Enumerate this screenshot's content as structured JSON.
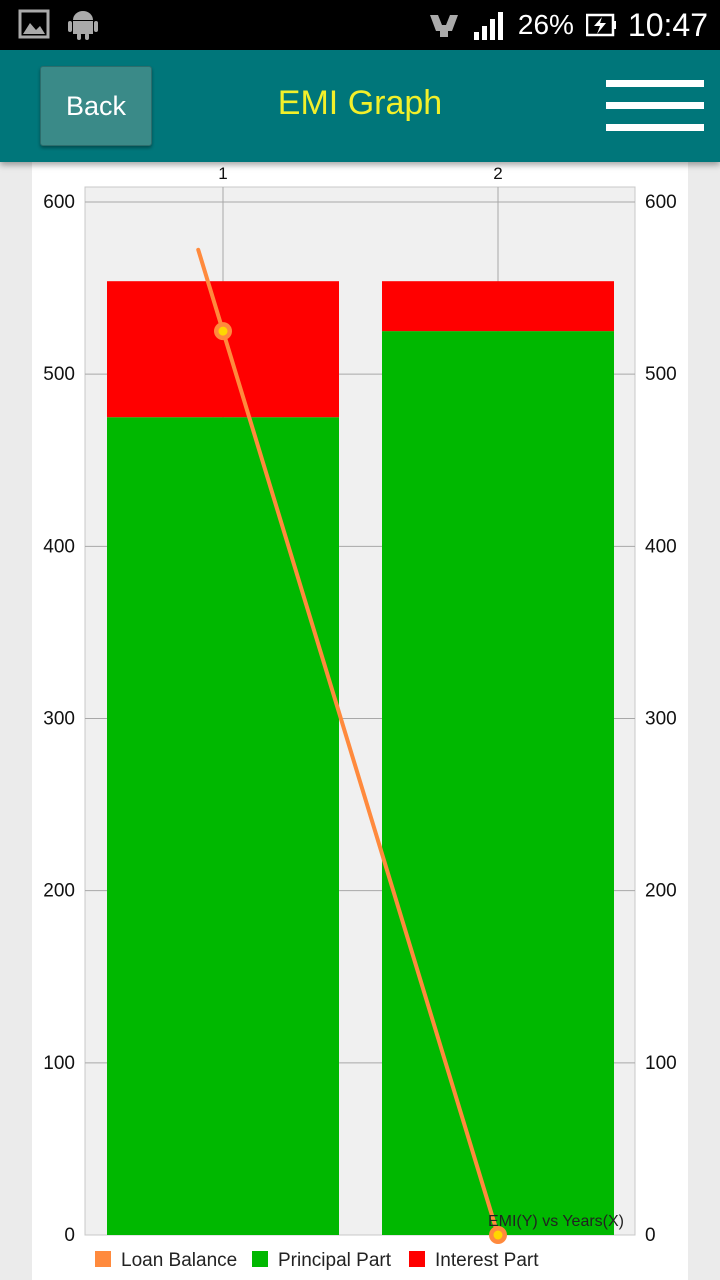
{
  "status_bar": {
    "battery_percent": "26%",
    "time": "10:47",
    "icons": [
      "gallery-icon",
      "android-icon",
      "hands-icon",
      "signal-icon",
      "battery-charging-icon"
    ]
  },
  "app_bar": {
    "back_label": "Back",
    "title": "EMI Graph",
    "menu_icon": "hamburger-menu-icon"
  },
  "colors": {
    "app_bar": "#00767a",
    "title": "#f2f02a",
    "principal": "#00b800",
    "interest": "#ff0000",
    "loan_balance": "#ff8a3d",
    "point_fill": "#ffd700"
  },
  "chart_data": {
    "type": "bar",
    "stacked": true,
    "title": "EMI(Y) vs Years(X)",
    "categories": [
      "1",
      "2"
    ],
    "ylim": [
      0,
      600
    ],
    "y_ticks": [
      "0",
      "100",
      "200",
      "300",
      "400",
      "500",
      "600"
    ],
    "grid": true,
    "legend_position": "bottom",
    "series": [
      {
        "name": "Principal Part",
        "type": "bar",
        "color": "#00b800",
        "values": [
          475,
          525
        ]
      },
      {
        "name": "Interest Part",
        "type": "bar",
        "color": "#ff0000",
        "values": [
          79,
          29
        ]
      },
      {
        "name": "Loan Balance",
        "type": "line",
        "color": "#ff8a3d",
        "values": [
          525,
          0
        ]
      }
    ]
  }
}
